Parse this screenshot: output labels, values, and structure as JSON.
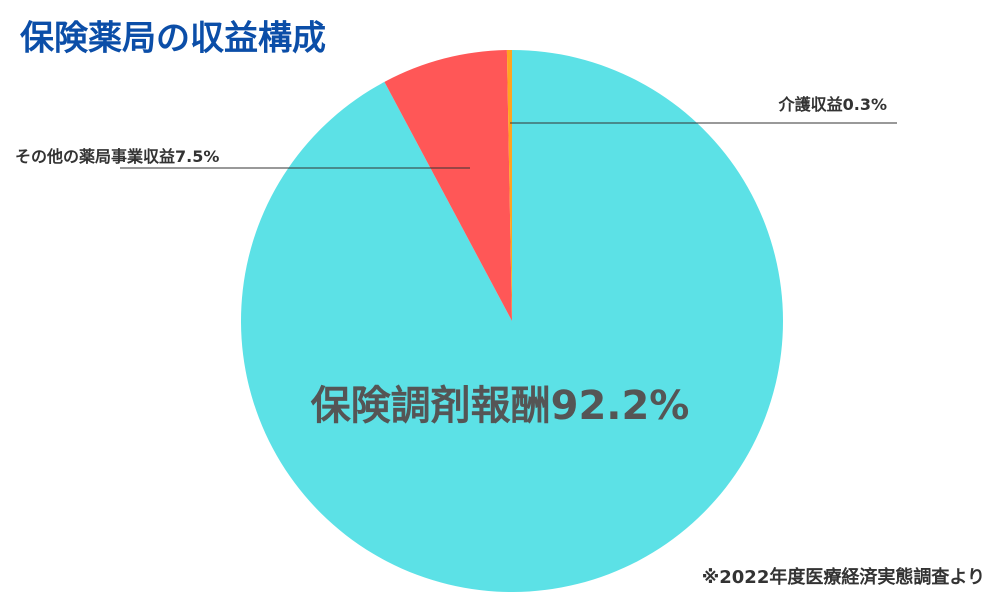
{
  "chart_data": {
    "type": "pie",
    "title": "保険薬局の収益構成",
    "categories": [
      "保険調剤報酬",
      "その他の薬局事業収益",
      "介護収益"
    ],
    "values": [
      92.2,
      7.5,
      0.3
    ],
    "value_labels": [
      "92.2%",
      "7.5%",
      "0.3%"
    ],
    "colors": [
      "#5ce1e6",
      "#ff5757",
      "#ffa51f"
    ],
    "annotation": "※2022年度医療経済実態調査より"
  }
}
